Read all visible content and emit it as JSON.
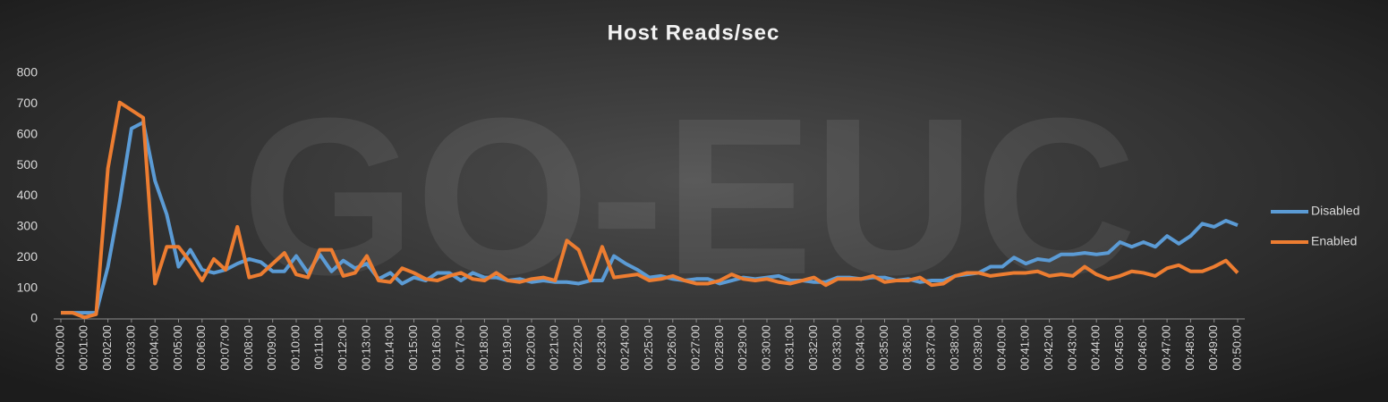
{
  "chart_data": {
    "type": "line",
    "title": "Host Reads/sec",
    "watermark": "GO-EUC",
    "categories": [
      "00:00:00",
      null,
      "00:01:00",
      null,
      "00:02:00",
      null,
      "00:03:00",
      null,
      "00:04:00",
      null,
      "00:05:00",
      null,
      "00:06:00",
      null,
      "00:07:00",
      null,
      "00:08:00",
      null,
      "00:09:00",
      null,
      "00:10:00",
      null,
      "00:11:00",
      null,
      "00:12:00",
      null,
      "00:13:00",
      null,
      "00:14:00",
      null,
      "00:15:00",
      null,
      "00:16:00",
      null,
      "00:17:00",
      null,
      "00:18:00",
      null,
      "00:19:00",
      null,
      "00:20:00",
      null,
      "00:21:00",
      null,
      "00:22:00",
      null,
      "00:23:00",
      null,
      "00:24:00",
      null,
      "00:25:00",
      null,
      "00:26:00",
      null,
      "00:27:00",
      null,
      "00:28:00",
      null,
      "00:29:00",
      null,
      "00:30:00",
      null,
      "00:31:00",
      null,
      "00:32:00",
      null,
      "00:33:00",
      null,
      "00:34:00",
      null,
      "00:35:00",
      null,
      "00:36:00",
      null,
      "00:37:00",
      null,
      "00:38:00",
      null,
      "00:39:00",
      null,
      "00:40:00",
      null,
      "00:41:00",
      null,
      "00:42:00",
      null,
      "00:43:00",
      null,
      "00:44:00",
      null,
      "00:45:00",
      null,
      "00:46:00",
      null,
      "00:47:00",
      null,
      "00:48:00",
      null,
      "00:49:00",
      null,
      "00:50:00"
    ],
    "series": [
      {
        "name": "Disabled",
        "color": "#5b9bd5",
        "values": [
          20,
          20,
          20,
          20,
          170,
          380,
          620,
          640,
          450,
          340,
          170,
          225,
          160,
          150,
          160,
          180,
          195,
          185,
          155,
          155,
          205,
          150,
          210,
          155,
          190,
          165,
          180,
          130,
          150,
          115,
          135,
          125,
          150,
          150,
          125,
          150,
          135,
          135,
          125,
          130,
          120,
          125,
          120,
          120,
          115,
          125,
          125,
          205,
          180,
          160,
          135,
          140,
          130,
          125,
          130,
          130,
          115,
          125,
          135,
          130,
          135,
          140,
          125,
          125,
          120,
          120,
          135,
          135,
          130,
          135,
          135,
          125,
          130,
          120,
          125,
          125,
          140,
          145,
          150,
          170,
          170,
          200,
          180,
          195,
          190,
          210,
          210,
          215,
          210,
          215,
          250,
          235,
          250,
          235,
          270,
          245,
          270,
          310,
          300,
          320,
          305
        ]
      },
      {
        "name": "Enabled",
        "color": "#ed7d31",
        "values": [
          20,
          20,
          5,
          15,
          490,
          705,
          680,
          655,
          115,
          235,
          235,
          185,
          125,
          195,
          160,
          300,
          135,
          145,
          180,
          215,
          145,
          135,
          225,
          225,
          140,
          150,
          205,
          125,
          120,
          165,
          150,
          130,
          125,
          140,
          150,
          130,
          125,
          150,
          125,
          120,
          130,
          135,
          125,
          255,
          225,
          125,
          235,
          135,
          140,
          145,
          125,
          130,
          140,
          125,
          115,
          115,
          125,
          145,
          130,
          125,
          130,
          120,
          115,
          125,
          135,
          110,
          130,
          130,
          130,
          140,
          120,
          125,
          125,
          135,
          110,
          115,
          140,
          150,
          150,
          140,
          145,
          150,
          150,
          155,
          140,
          145,
          140,
          170,
          145,
          130,
          140,
          155,
          150,
          140,
          165,
          175,
          155,
          155,
          170,
          190,
          150
        ]
      }
    ],
    "ylim": [
      0,
      800
    ],
    "yticks": [
      0,
      100,
      200,
      300,
      400,
      500,
      600,
      700,
      800
    ],
    "legend": "right"
  }
}
